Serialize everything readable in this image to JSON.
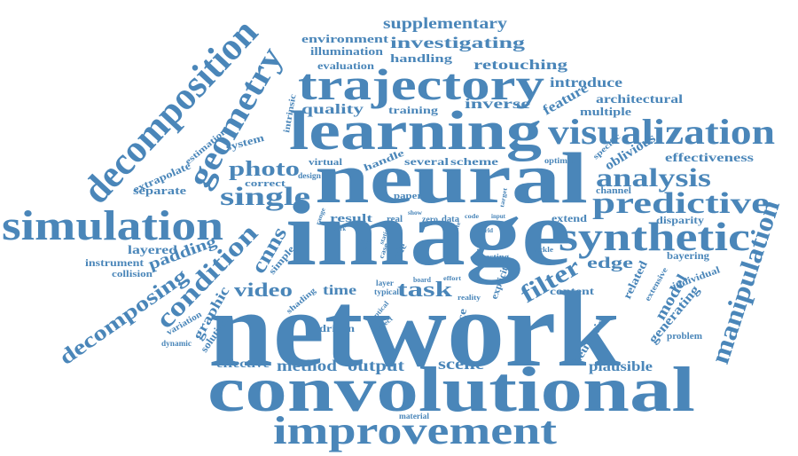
{
  "color": "#4a86b9",
  "words": [
    "network",
    "image",
    "neural",
    "convolutional",
    "learning",
    "trajectory",
    "improvement",
    "simulation",
    "decomposition",
    "synthetic",
    "visualization",
    "geometry",
    "predictive",
    "manipulation",
    "single",
    "filter",
    "analysis",
    "condition",
    "decomposing",
    "photo",
    "task",
    "video",
    "supplementary",
    "investigating",
    "retouching",
    "environment",
    "illumination",
    "handling",
    "evaluation",
    "introduce",
    "architectural",
    "feature",
    "multiple",
    "inverse",
    "quality",
    "training",
    "intrinsic",
    "estimation",
    "extrapolate",
    "system",
    "correct",
    "separate",
    "virtual",
    "design",
    "handle",
    "several",
    "scheme",
    "optimal",
    "specific",
    "oblivious",
    "effectiveness",
    "channel",
    "paper",
    "result",
    "real",
    "show",
    "zero",
    "data",
    "code",
    "input",
    "target",
    "extend",
    "disparity",
    "layered",
    "padding",
    "instrument",
    "collision",
    "cnns",
    "simple",
    "range",
    "work",
    "novel",
    "static",
    "case",
    "rule",
    "state",
    "artist",
    "testing",
    "tackle",
    "edge",
    "related",
    "bayering",
    "extensive",
    "individual",
    "layer",
    "board",
    "effort",
    "typical",
    "time",
    "reality",
    "world",
    "model",
    "heuristic",
    "content",
    "generating",
    "shading",
    "graphic",
    "variation",
    "solution",
    "dynamic",
    "optical",
    "project",
    "driven",
    "explicit",
    "bounce",
    "problem",
    "effective",
    "method",
    "output",
    "scene",
    "plausible",
    "material"
  ]
}
